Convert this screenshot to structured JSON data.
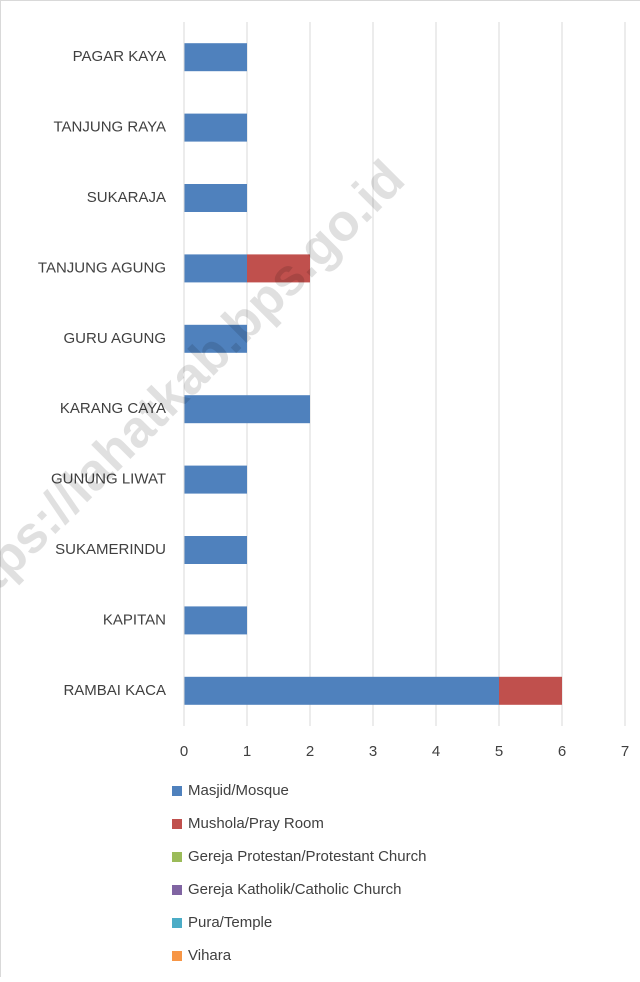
{
  "chart_data": {
    "type": "stacked_barh",
    "categories": [
      "PAGAR KAYA",
      "TANJUNG RAYA",
      "SUKARAJA",
      "TANJUNG AGUNG",
      "GURU AGUNG",
      "KARANG CAYA",
      "GUNUNG LIWAT",
      "SUKAMERINDU",
      "KAPITAN",
      "RAMBAI KACA"
    ],
    "series": [
      {
        "name": "Masjid/Mosque",
        "color": "#4f81bd",
        "values": [
          1,
          1,
          1,
          1,
          1,
          2,
          1,
          1,
          1,
          5
        ]
      },
      {
        "name": "Mushola/Pray Room",
        "color": "#c0504d",
        "values": [
          0,
          0,
          0,
          1,
          0,
          0,
          0,
          0,
          0,
          1
        ]
      },
      {
        "name": "Gereja Protestan/Protestant Church",
        "color": "#9bbb59",
        "values": [
          0,
          0,
          0,
          0,
          0,
          0,
          0,
          0,
          0,
          0
        ]
      },
      {
        "name": "Gereja Katholik/Catholic Church",
        "color": "#8064a2",
        "values": [
          0,
          0,
          0,
          0,
          0,
          0,
          0,
          0,
          0,
          0
        ]
      },
      {
        "name": "Pura/Temple",
        "color": "#4bacc6",
        "values": [
          0,
          0,
          0,
          0,
          0,
          0,
          0,
          0,
          0,
          0
        ]
      },
      {
        "name": "Vihara",
        "color": "#f79646",
        "values": [
          0,
          0,
          0,
          0,
          0,
          0,
          0,
          0,
          0,
          0
        ]
      }
    ],
    "xlim": [
      0,
      7
    ],
    "xticks": [
      0,
      1,
      2,
      3,
      4,
      5,
      6,
      7
    ],
    "grid": true,
    "legend": "bottom",
    "watermark": "https://lahatkab.bps.go.id"
  }
}
